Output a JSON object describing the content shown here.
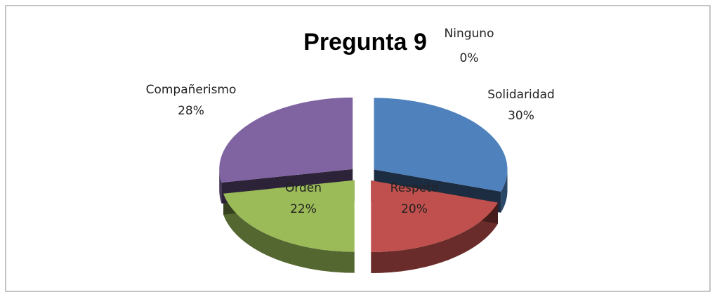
{
  "chart_data": {
    "type": "pie3d",
    "title": "Pregunta 9",
    "categories": [
      "Solidaridad",
      "Respeto",
      "Orden",
      "Compañerismo",
      "Ninguno"
    ],
    "values": [
      30,
      20,
      22,
      28,
      0
    ],
    "value_labels": [
      "30%",
      "20%",
      "22%",
      "28%",
      "0%"
    ],
    "colors": [
      "#4f81bd",
      "#c0504d",
      "#9bbb59",
      "#8064a2",
      "#4bacc6"
    ]
  }
}
